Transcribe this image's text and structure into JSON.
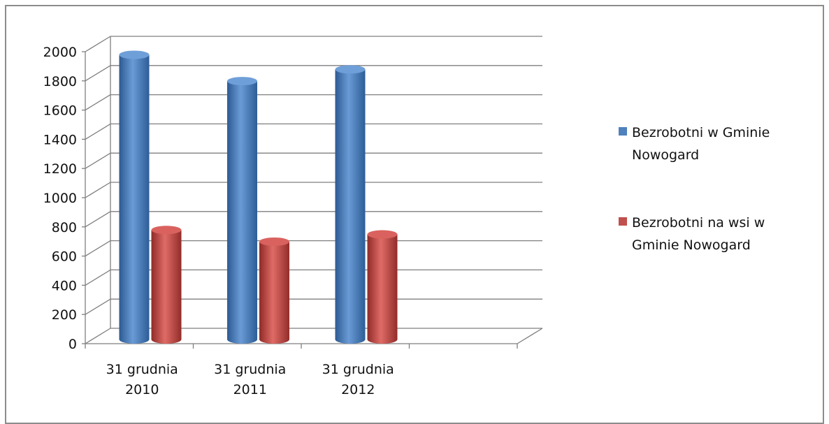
{
  "chart_data": {
    "type": "bar",
    "categories": [
      "31 grudnia 2010",
      "31 grudnia 2011",
      "31 grudnia 2012"
    ],
    "category_lines": [
      [
        "31 grudnia",
        "2010"
      ],
      [
        "31 grudnia",
        "2011"
      ],
      [
        "31 grudnia",
        "2012"
      ]
    ],
    "series": [
      {
        "name": "Bezrobotni w Gminie Nowogard",
        "legend_lines": [
          "Bezrobotni w Gminie",
          "Nowogard"
        ],
        "values": [
          1950,
          1770,
          1850
        ],
        "color": "#4f81bd"
      },
      {
        "name": "Bezrobotni na wsi w Gminie Nowogard",
        "legend_lines": [
          "Bezrobotni na wsi w",
          "Gminie Nowogard"
        ],
        "values": [
          750,
          670,
          720
        ],
        "color": "#c0504d"
      }
    ],
    "ylim": [
      0,
      2000
    ],
    "yticks": [
      0,
      200,
      400,
      600,
      800,
      1000,
      1200,
      1400,
      1600,
      1800,
      2000
    ],
    "grid": true,
    "legend_position": "right",
    "style": "3d-cylinder"
  }
}
